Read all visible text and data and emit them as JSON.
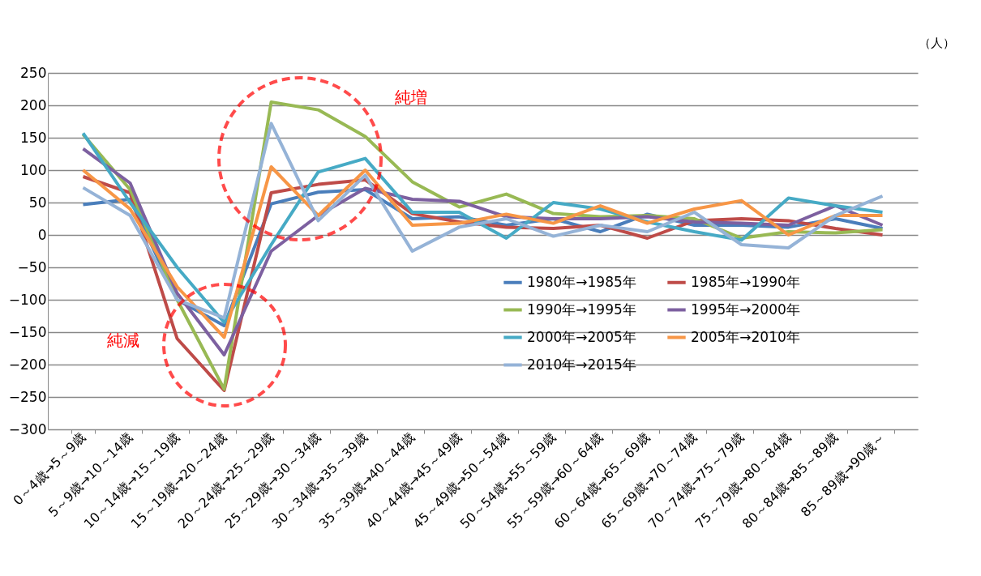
{
  "chart_data": {
    "type": "line",
    "ylabel": "（人）",
    "categories": [
      "0～4歳→5～9歳",
      "5～9歳→10～14歳",
      "10～14歳→15～19歳",
      "15～19歳→20～24歳",
      "20～24歳→25～29歳",
      "25～29歳→30～34歳",
      "30～34歳→35～39歳",
      "35～39歳→40～44歳",
      "40～44歳→45～49歳",
      "45～49歳→50～54歳",
      "50～54歳→55～59歳",
      "55～59歳→60～64歳",
      "60～64歳→65～69歳",
      "65～69歳→70～74歳",
      "70～74歳→75～79歳",
      "75～79歳→80～84歳",
      "80～84歳→85～89歳",
      "85～89歳→90歳～"
    ],
    "series": [
      {
        "name": "1980年→1985年",
        "color": "#4a7ebb",
        "values": [
          47,
          55,
          -100,
          -140,
          48,
          66,
          70,
          25,
          28,
          15,
          25,
          5,
          32,
          15,
          15,
          12,
          25,
          10
        ]
      },
      {
        "name": "1985年→1990年",
        "color": "#be4b48",
        "values": [
          90,
          65,
          -160,
          -240,
          65,
          78,
          85,
          33,
          20,
          12,
          10,
          15,
          -5,
          22,
          25,
          22,
          10,
          0
        ]
      },
      {
        "name": "1990年→1995年",
        "color": "#98b954",
        "values": [
          155,
          70,
          -100,
          -238,
          205,
          193,
          152,
          82,
          43,
          63,
          33,
          28,
          30,
          25,
          -5,
          5,
          3,
          8
        ]
      },
      {
        "name": "1995年→2000年",
        "color": "#7d60a0",
        "values": [
          133,
          80,
          -90,
          -185,
          -25,
          30,
          72,
          55,
          52,
          28,
          25,
          25,
          28,
          20,
          18,
          15,
          45,
          15
        ]
      },
      {
        "name": "2000年→2005年",
        "color": "#46aac5",
        "values": [
          157,
          50,
          -50,
          -135,
          -15,
          97,
          118,
          35,
          35,
          -5,
          50,
          40,
          20,
          5,
          -8,
          57,
          45,
          35
        ]
      },
      {
        "name": "2005年→2010年",
        "color": "#f79646",
        "values": [
          100,
          40,
          -80,
          -158,
          105,
          30,
          100,
          15,
          18,
          32,
          18,
          45,
          18,
          40,
          53,
          0,
          30,
          30
        ]
      },
      {
        "name": "2010年→2015年",
        "color": "#95b3d7",
        "values": [
          73,
          30,
          -100,
          -128,
          172,
          22,
          92,
          -25,
          12,
          25,
          -2,
          15,
          5,
          35,
          -15,
          -20,
          30,
          60
        ]
      }
    ],
    "ylim": [
      -300,
      250
    ],
    "yticks": [
      -300,
      -250,
      -200,
      -150,
      -100,
      -50,
      0,
      50,
      100,
      150,
      200,
      250
    ],
    "grid": "y",
    "legend": "bottom right",
    "marker": "none",
    "line_style": "solid",
    "annotations": [
      "純増",
      "純減"
    ]
  }
}
